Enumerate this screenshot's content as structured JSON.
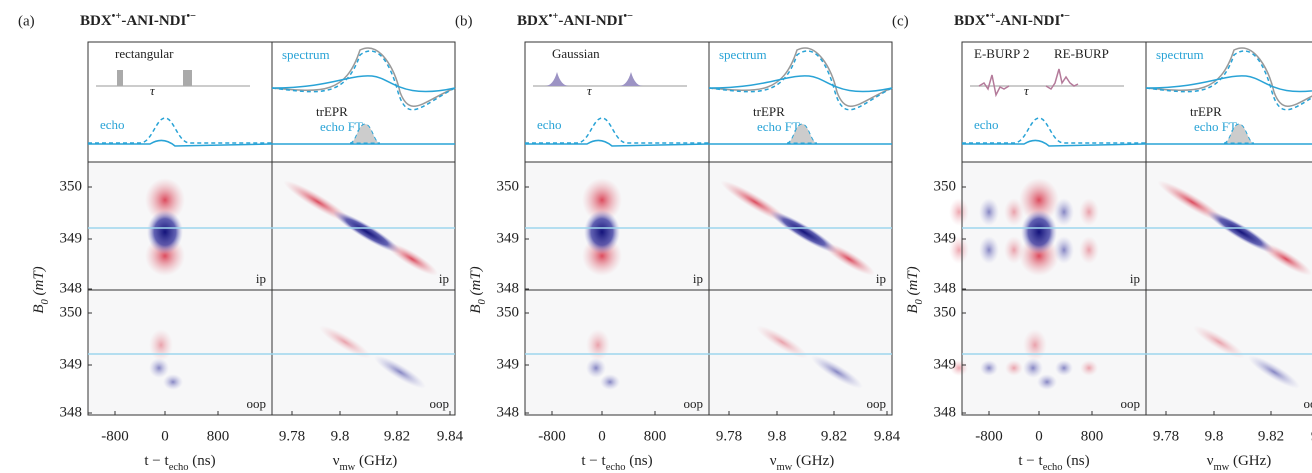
{
  "panels": [
    {
      "label": "(a)",
      "title": [
        "BDX",
        "•+",
        "-ANI-NDI",
        "•−"
      ],
      "pulse_labels": [
        "rectangular"
      ],
      "tau": "τ",
      "spectrum": "spectrum",
      "trepr": "trEPR",
      "echo": "echo",
      "echo_ft": "echo FT",
      "ip": "ip",
      "oop": "oop"
    },
    {
      "label": "(b)",
      "title": [
        "BDX",
        "•+",
        "-ANI-NDI",
        "•−"
      ],
      "pulse_labels": [
        "Gaussian"
      ],
      "tau": "τ",
      "spectrum": "spectrum",
      "trepr": "trEPR",
      "echo": "echo",
      "echo_ft": "echo FT",
      "ip": "ip",
      "oop": "oop"
    },
    {
      "label": "(c)",
      "title": [
        "BDX",
        "•+",
        "-ANI-NDI",
        "•−"
      ],
      "pulse_labels": [
        "E-BURP 2",
        "RE-BURP"
      ],
      "tau": "τ",
      "spectrum": "spectrum",
      "trepr": "trEPR",
      "echo": "echo",
      "echo_ft": "echo FT",
      "ip": "ip",
      "oop": "oop"
    }
  ],
  "y_axis": {
    "label": [
      "B",
      "0",
      " (mT)"
    ],
    "ticks": [
      "350",
      "349",
      "348"
    ]
  },
  "x_axis_time": {
    "label": [
      "t − t",
      "echo",
      " (ns)"
    ],
    "ticks": [
      "-800",
      "0",
      "800"
    ]
  },
  "x_axis_freq": {
    "label": [
      "ν",
      "mw",
      " (GHz)"
    ],
    "ticks": [
      "9.78",
      "9.8",
      "9.82",
      "9.84"
    ]
  }
}
